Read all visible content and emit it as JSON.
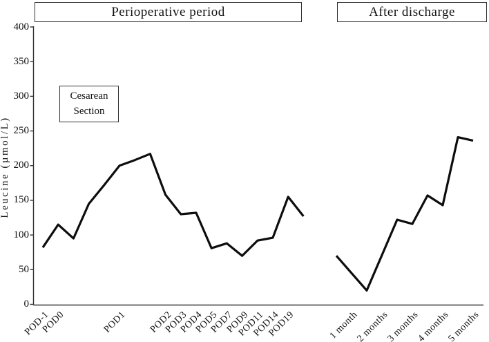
{
  "figure": {
    "header_boxes": [
      {
        "id": "perioperative",
        "label": "Perioperative period"
      },
      {
        "id": "after_discharge",
        "label": "After discharge"
      }
    ],
    "annotation": {
      "line1": "Cesarean",
      "line2": "Section"
    }
  },
  "chart_data": {
    "type": "line",
    "title": "",
    "xlabel": "",
    "ylabel": "Leucine (µmol/L)",
    "ylim": [
      0,
      400
    ],
    "ytick_step": 50,
    "yticks": [
      400,
      350,
      300,
      250,
      200,
      150,
      100,
      50,
      0
    ],
    "grid": false,
    "legend_position": "none",
    "line_color": "#0d0d0d",
    "axis_color": "#333333",
    "series": [
      {
        "name": "Perioperative period",
        "categories": [
          "POD-1",
          "POD0",
          "",
          "",
          "",
          "POD1",
          "",
          "",
          "POD2",
          "POD3",
          "POD4",
          "POD5",
          "POD7",
          "POD9",
          "POD11",
          "POD14",
          "POD19",
          ""
        ],
        "values": [
          82,
          115,
          95,
          145,
          172,
          200,
          208,
          217,
          158,
          130,
          132,
          81,
          88,
          70,
          92,
          96,
          155,
          127
        ]
      },
      {
        "name": "After discharge",
        "categories": [
          "",
          "1 month",
          "",
          "2 months",
          "",
          "3 months",
          "",
          "4 months",
          "",
          "5 months"
        ],
        "values": [
          70,
          45,
          20,
          71,
          122,
          116,
          157,
          143,
          241,
          236
        ]
      }
    ]
  }
}
